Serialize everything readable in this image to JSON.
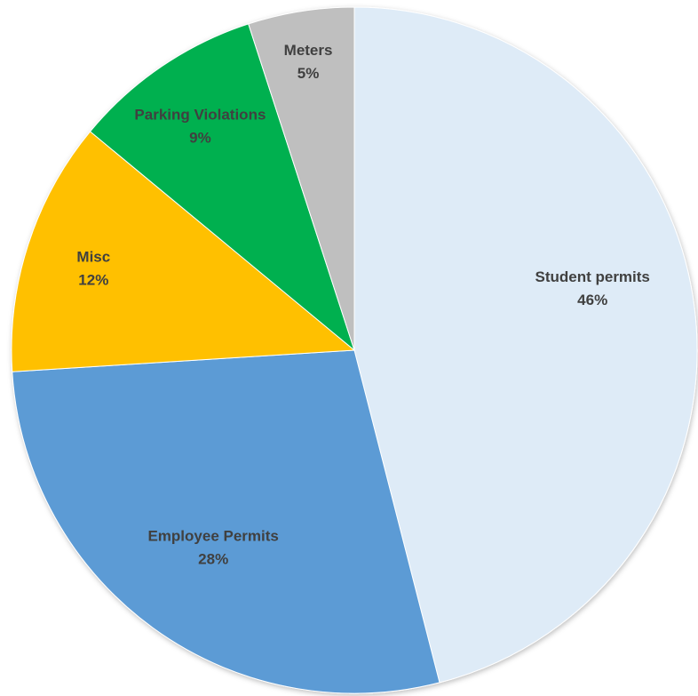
{
  "chart_data": {
    "type": "pie",
    "title": "",
    "start_angle_deg": 0,
    "direction": "clockwise",
    "slices": [
      {
        "label": "Student permits",
        "percent_label": "46%",
        "value": 46,
        "color": "#DEEBF7"
      },
      {
        "label": "Employee Permits",
        "percent_label": "28%",
        "value": 28,
        "color": "#5B9BD5"
      },
      {
        "label": "Misc",
        "percent_label": "12%",
        "value": 12,
        "color": "#FFC000"
      },
      {
        "label": "Parking Violations",
        "percent_label": "9%",
        "value": 9,
        "color": "#00B050"
      },
      {
        "label": "Meters",
        "percent_label": "5%",
        "value": 5,
        "color": "#BFBFBF"
      }
    ],
    "legend": "none",
    "data_labels": "inside"
  }
}
